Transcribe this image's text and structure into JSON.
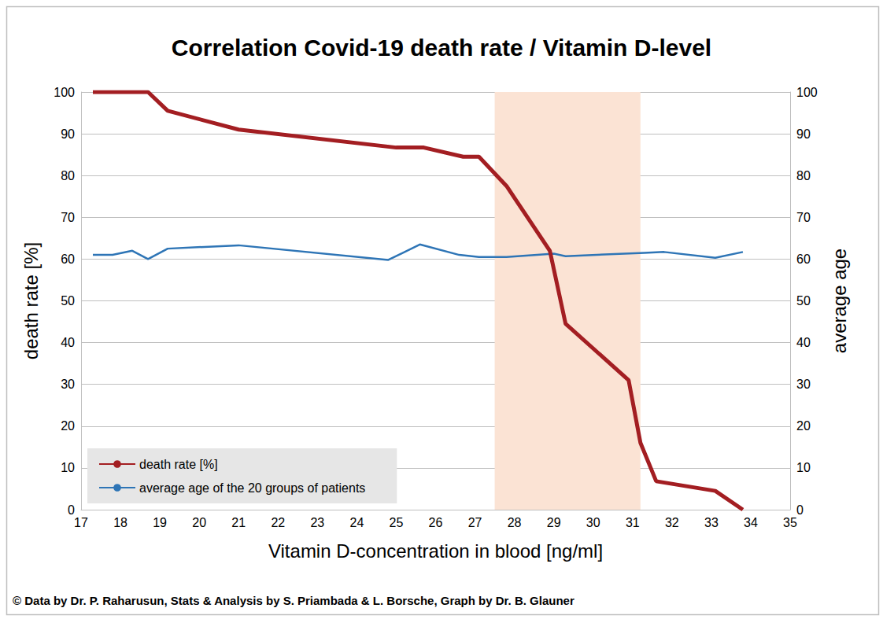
{
  "chart_data": {
    "type": "line",
    "title": "Correlation Covid-19 death rate / Vitamin D-level",
    "x_label": "Vitamin D-concentration in blood [ng/ml]",
    "y_label": "death rate [%]",
    "y2_label": "average age",
    "footer": "© Data by Dr. P. Raharusun, Stats & Analysis by S. Priambada & L. Borsche, Graph by Dr. B. Glauner",
    "xlim": [
      17,
      35
    ],
    "xticks": [
      17,
      18,
      19,
      20,
      21,
      22,
      23,
      24,
      25,
      26,
      27,
      28,
      29,
      30,
      31,
      32,
      33,
      34,
      35
    ],
    "ylim": [
      0,
      100
    ],
    "yticks": [
      0,
      10,
      20,
      30,
      40,
      50,
      60,
      70,
      80,
      90,
      100
    ],
    "y2lim": [
      0,
      100
    ],
    "y2ticks": [
      0,
      10,
      20,
      30,
      40,
      50,
      60,
      70,
      80,
      90,
      100
    ],
    "shaded_range": [
      27.5,
      31.2
    ],
    "grid": true,
    "legend": "lower left",
    "series": [
      {
        "name": "death rate [%]",
        "color": "#a31e22",
        "x": [
          17.3,
          18.7,
          19.2,
          21.0,
          25.0,
          25.7,
          26.7,
          27.1,
          27.8,
          28.9,
          29.3,
          30.9,
          31.2,
          31.6,
          33.1,
          33.8
        ],
        "values": [
          100,
          100,
          95.5,
          91,
          86.7,
          86.7,
          84.5,
          84.5,
          77.5,
          62,
          44.5,
          31,
          16,
          6.8,
          4.5,
          0
        ]
      },
      {
        "name": "average age of the 20 groups of patients",
        "color": "#2e75b6",
        "axis": "y2",
        "x": [
          17.3,
          17.8,
          18.3,
          18.7,
          19.2,
          21.0,
          24.8,
          25.6,
          26.6,
          27.1,
          27.8,
          29.0,
          29.3,
          31.3,
          31.8,
          33.1,
          33.8
        ],
        "values": [
          61,
          61,
          62,
          60,
          62.5,
          63.3,
          59.8,
          63.5,
          61,
          60.5,
          60.5,
          61.3,
          60.7,
          61.5,
          61.7,
          60.3,
          61.7
        ]
      }
    ]
  }
}
